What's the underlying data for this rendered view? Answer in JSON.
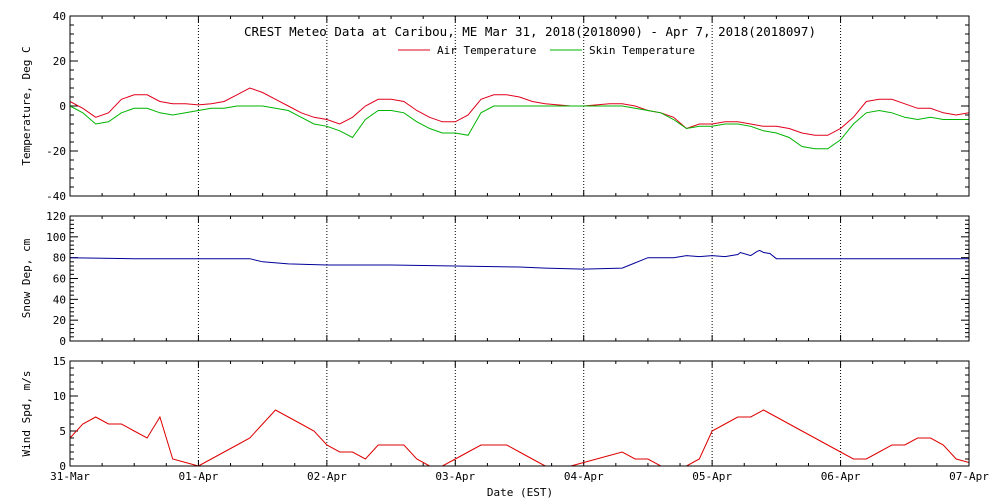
{
  "chart_data": {
    "title": "CREST Meteo Data at Caribou, ME   Mar 31, 2018(2018090) - Apr  7, 2018(2018097)",
    "xlabel": "Date (EST)",
    "x_ticks": [
      "31-Mar",
      "01-Apr",
      "02-Apr",
      "03-Apr",
      "04-Apr",
      "05-Apr",
      "06-Apr",
      "07-Apr"
    ],
    "x_unit": "days since 31-Mar 00:00 EST",
    "x_range": [
      0,
      7
    ],
    "colors": {
      "air": "#e0001b",
      "skin": "#00b400",
      "snow": "#000099",
      "wind": "#dd0000",
      "grid": "#000000"
    },
    "panels": [
      {
        "type": "line",
        "ylabel": "Temperature, Deg C",
        "ylim": [
          -40,
          40
        ],
        "yticks": [
          -40,
          -20,
          0,
          20,
          40
        ],
        "legend": "top-center",
        "series": [
          {
            "name": "Air Temperature",
            "color": "#e0001b",
            "x": [
              0,
              0.1,
              0.2,
              0.3,
              0.4,
              0.5,
              0.6,
              0.7,
              0.8,
              0.9,
              1.0,
              1.1,
              1.2,
              1.3,
              1.4,
              1.5,
              1.6,
              1.7,
              1.8,
              1.9,
              2.0,
              2.1,
              2.2,
              2.3,
              2.4,
              2.5,
              2.6,
              2.7,
              2.8,
              2.9,
              3.0,
              3.1,
              3.2,
              3.3,
              3.4,
              3.5,
              3.6,
              3.7,
              3.8,
              3.9,
              4.0,
              4.1,
              4.2,
              4.3,
              4.4,
              4.5,
              4.6,
              4.7,
              4.8,
              4.9,
              5.0,
              5.1,
              5.2,
              5.3,
              5.4,
              5.5,
              5.6,
              5.7,
              5.8,
              5.9,
              6.0,
              6.1,
              6.2,
              6.3,
              6.4,
              6.5,
              6.6,
              6.7,
              6.8,
              6.9,
              7.0
            ],
            "values": [
              2,
              -1,
              -5,
              -3,
              3,
              5,
              5,
              2,
              1,
              1,
              0.5,
              1,
              2,
              5,
              8,
              6,
              3,
              0,
              -3,
              -5,
              -6,
              -8,
              -5,
              0,
              3,
              3,
              2,
              -2,
              -5,
              -7,
              -7,
              -4,
              3,
              5,
              5,
              4,
              2,
              1,
              0.5,
              0,
              0,
              0.5,
              1,
              1,
              0,
              -2,
              -3,
              -5,
              -10,
              -8,
              -8,
              -7,
              -7,
              -8,
              -9,
              -9,
              -10,
              -12,
              -13,
              -13,
              -10,
              -5,
              2,
              3,
              3,
              1,
              -1,
              -1,
              -3,
              -4,
              -3
            ]
          },
          {
            "name": "Skin Temperature",
            "color": "#00b400",
            "x": [
              0,
              0.1,
              0.2,
              0.3,
              0.4,
              0.5,
              0.6,
              0.7,
              0.8,
              0.9,
              1.0,
              1.1,
              1.2,
              1.3,
              1.4,
              1.5,
              1.6,
              1.7,
              1.8,
              1.9,
              2.0,
              2.1,
              2.2,
              2.3,
              2.4,
              2.5,
              2.6,
              2.7,
              2.8,
              2.9,
              3.0,
              3.1,
              3.2,
              3.3,
              3.4,
              3.5,
              3.6,
              3.7,
              3.8,
              3.9,
              4.0,
              4.1,
              4.2,
              4.3,
              4.4,
              4.5,
              4.6,
              4.7,
              4.8,
              4.9,
              5.0,
              5.1,
              5.2,
              5.3,
              5.4,
              5.5,
              5.6,
              5.7,
              5.8,
              5.9,
              6.0,
              6.1,
              6.2,
              6.3,
              6.4,
              6.5,
              6.6,
              6.7,
              6.8,
              6.9,
              7.0
            ],
            "values": [
              0,
              -3,
              -8,
              -7,
              -3,
              -1,
              -1,
              -3,
              -4,
              -3,
              -2,
              -1,
              -1,
              0,
              0,
              0,
              -1,
              -2,
              -5,
              -8,
              -9,
              -11,
              -14,
              -6,
              -2,
              -2,
              -3,
              -7,
              -10,
              -12,
              -12,
              -13,
              -3,
              0,
              0,
              0,
              0,
              0,
              0,
              0,
              0,
              0,
              0,
              0,
              -1,
              -2,
              -3,
              -6,
              -10,
              -9,
              -9,
              -8,
              -8,
              -9,
              -11,
              -12,
              -14,
              -18,
              -19,
              -19,
              -15,
              -8,
              -3,
              -2,
              -3,
              -5,
              -6,
              -5,
              -6,
              -6,
              -6
            ]
          }
        ]
      },
      {
        "type": "line",
        "ylabel": "Snow Dep, cm",
        "ylim": [
          0,
          120
        ],
        "yticks": [
          0,
          20,
          40,
          60,
          80,
          100,
          120
        ],
        "series": [
          {
            "name": "",
            "color": "#000099",
            "x": [
              0,
              0.5,
              1.0,
              1.4,
              1.5,
              1.7,
              2.0,
              2.5,
              3.0,
              3.5,
              3.7,
              4.0,
              4.3,
              4.4,
              4.5,
              4.7,
              4.8,
              4.9,
              5.0,
              5.1,
              5.2,
              5.22,
              5.3,
              5.35,
              5.37,
              5.4,
              5.45,
              5.5,
              5.6,
              6.0,
              6.5,
              7.0
            ],
            "values": [
              80,
              79,
              79,
              79,
              76,
              74,
              73,
              73,
              72,
              71,
              70,
              69,
              70,
              75,
              80,
              80,
              82,
              81,
              82,
              81,
              83,
              85,
              82,
              86,
              87,
              85,
              84,
              79,
              79,
              79,
              79,
              79
            ]
          }
        ]
      },
      {
        "type": "line",
        "ylabel": "Wind Spd, m/s",
        "ylim": [
          0,
          15
        ],
        "yticks": [
          0,
          5,
          10,
          15
        ],
        "series": [
          {
            "name": "",
            "color": "#dd0000",
            "x": [
              0,
              0.1,
              0.2,
              0.3,
              0.4,
              0.5,
              0.6,
              0.7,
              0.8,
              0.9,
              1.0,
              1.1,
              1.2,
              1.3,
              1.4,
              1.5,
              1.6,
              1.7,
              1.8,
              1.9,
              2.0,
              2.1,
              2.2,
              2.3,
              2.4,
              2.5,
              2.6,
              2.7,
              2.8,
              2.9,
              3.0,
              3.1,
              3.2,
              3.3,
              3.4,
              3.5,
              3.6,
              3.7,
              3.8,
              3.9,
              4.0,
              4.1,
              4.2,
              4.3,
              4.4,
              4.5,
              4.6,
              4.7,
              4.8,
              4.9,
              5.0,
              5.1,
              5.2,
              5.3,
              5.4,
              5.5,
              5.6,
              5.7,
              5.8,
              5.9,
              6.0,
              6.1,
              6.2,
              6.3,
              6.4,
              6.5,
              6.6,
              6.7,
              6.8,
              6.9,
              7.0
            ],
            "values": [
              4,
              6,
              7,
              6,
              6,
              5,
              4,
              7,
              1,
              0.5,
              0,
              1,
              2,
              3,
              4,
              6,
              8,
              7,
              6,
              5,
              3,
              2,
              2,
              1,
              3,
              3,
              3,
              1,
              0,
              0,
              1,
              2,
              3,
              3,
              3,
              2,
              1,
              0,
              0,
              0,
              0.5,
              1,
              1.5,
              2,
              1,
              1,
              0,
              0,
              0,
              1,
              5,
              6,
              7,
              7,
              8,
              7,
              6,
              5,
              4,
              3,
              2,
              1,
              1,
              2,
              3,
              3,
              4,
              4,
              3,
              1,
              0.5
            ]
          }
        ]
      }
    ]
  }
}
